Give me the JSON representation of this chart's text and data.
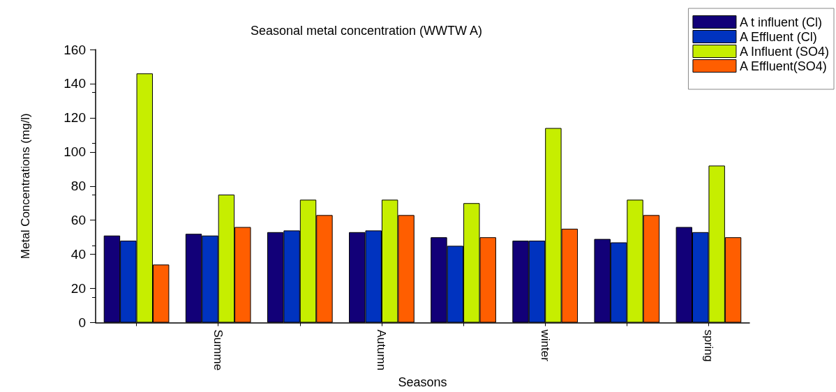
{
  "chart_data": {
    "type": "bar",
    "title": "Seasonal metal concentration (WWTW A)",
    "xlabel": "Seasons",
    "ylabel": "Metal Concentrations (mg/l)",
    "categories": [
      null,
      "Summe",
      null,
      "Autumn",
      null,
      "winter",
      null,
      "spring"
    ],
    "series": [
      {
        "name": "A t influent (Cl)",
        "color": "#120078",
        "values": [
          51,
          52,
          53,
          53,
          50,
          48,
          49,
          56
        ]
      },
      {
        "name": "A Effluent (Cl)",
        "color": "#0033bf",
        "values": [
          48,
          51,
          54,
          54,
          45,
          48,
          47,
          53
        ]
      },
      {
        "name": "A Influent (SO4)",
        "color": "#c6ee00",
        "values": [
          146,
          75,
          72,
          72,
          70,
          114,
          72,
          92
        ]
      },
      {
        "name": "A Effluent(SO4)",
        "color": "#ff5e00",
        "values": [
          34,
          56,
          63,
          63,
          50,
          55,
          63,
          50
        ]
      }
    ],
    "ylim": [
      0,
      160
    ],
    "yticks": [
      0,
      20,
      40,
      60,
      80,
      100,
      120,
      140,
      160
    ],
    "grid": false,
    "legend": "top right"
  }
}
